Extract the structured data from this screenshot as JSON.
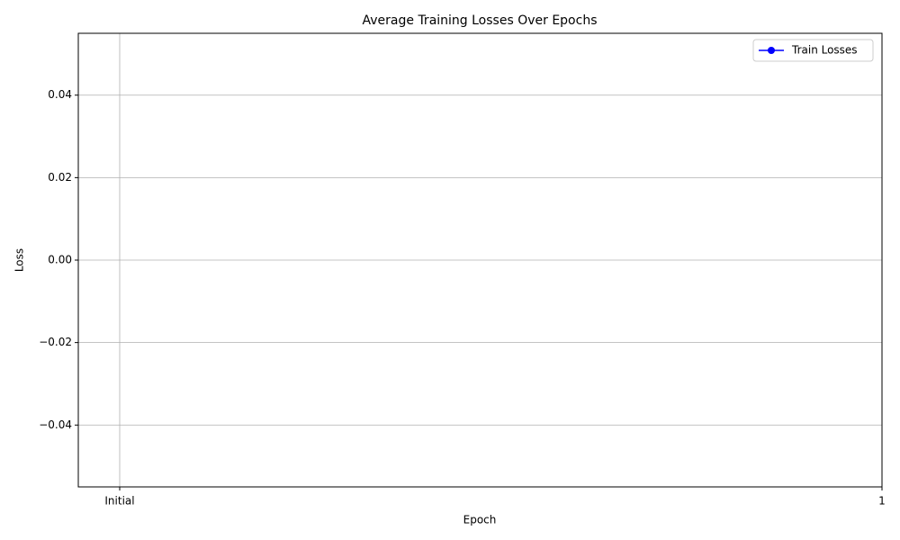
{
  "chart_data": {
    "type": "line",
    "title": "Average Training Losses Over Epochs",
    "x_label": "Epoch",
    "y_label": "Loss",
    "categories": [
      "Initial",
      "1"
    ],
    "series": [
      {
        "name": "Train Losses",
        "color": "#0000ff",
        "values": [
          null,
          null
        ]
      }
    ],
    "ylim": [
      -0.055,
      0.055
    ],
    "yticks": [
      {
        "value": -0.04,
        "label": "−0.04"
      },
      {
        "value": -0.02,
        "label": "−0.02"
      },
      {
        "value": 0,
        "label": "0.00"
      },
      0.02,
      0.04
    ],
    "grid": true,
    "legend": "upper right"
  }
}
